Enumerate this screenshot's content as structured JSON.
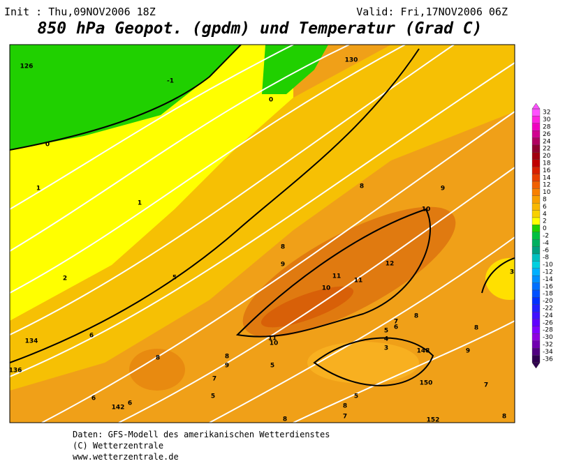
{
  "header": {
    "init": "Init : Thu,09NOV2006 18Z",
    "valid": "Valid: Fri,17NOV2006 06Z",
    "title": "850 hPa Geopot. (gpdm) und Temperatur (Grad C)"
  },
  "map": {
    "contour_labels": [
      "126",
      "-1",
      "130",
      "0",
      "0",
      "1",
      "1",
      "8",
      "9",
      "10",
      "8",
      "9",
      "12",
      "5",
      "2",
      "11",
      "11",
      "10",
      "7",
      "6",
      "5",
      "134",
      "6",
      "4",
      "3",
      "148",
      "11",
      "10",
      "8",
      "8",
      "9",
      "8",
      "8",
      "9",
      "136",
      "7",
      "5",
      "150",
      "7",
      "5",
      "5",
      "6",
      "142",
      "6",
      "8",
      "7",
      "152",
      "8",
      "8",
      "3"
    ]
  },
  "legend": {
    "labels": [
      32,
      30,
      28,
      26,
      24,
      22,
      20,
      18,
      16,
      14,
      12,
      10,
      8,
      6,
      4,
      2,
      0,
      -2,
      -4,
      -6,
      -8,
      -10,
      -12,
      -14,
      -16,
      -18,
      -20,
      -22,
      -24,
      -26,
      -28,
      -30,
      -32,
      -34,
      -36
    ],
    "colors": [
      "#ff50ff",
      "#ff20e0",
      "#f000c0",
      "#d00090",
      "#b00060",
      "#900030",
      "#a00010",
      "#c00000",
      "#d82000",
      "#e84000",
      "#f06000",
      "#f88000",
      "#f8a000",
      "#f8b800",
      "#f8d000",
      "#ffff00",
      "#20d000",
      "#00c040",
      "#00b060",
      "#00a080",
      "#00c0c0",
      "#00d0e0",
      "#00b0ff",
      "#0090ff",
      "#0070ff",
      "#0050ff",
      "#0030ff",
      "#2020ff",
      "#4010ff",
      "#6000ff",
      "#8000ff",
      "#9000e0",
      "#7000b0",
      "#500080",
      "#300050"
    ]
  },
  "footer": {
    "lines": [
      "Daten: GFS-Modell des amerikanischen Wetterdienstes",
      "(C) Wetterzentrale",
      "www.wetterzentrale.de"
    ]
  }
}
